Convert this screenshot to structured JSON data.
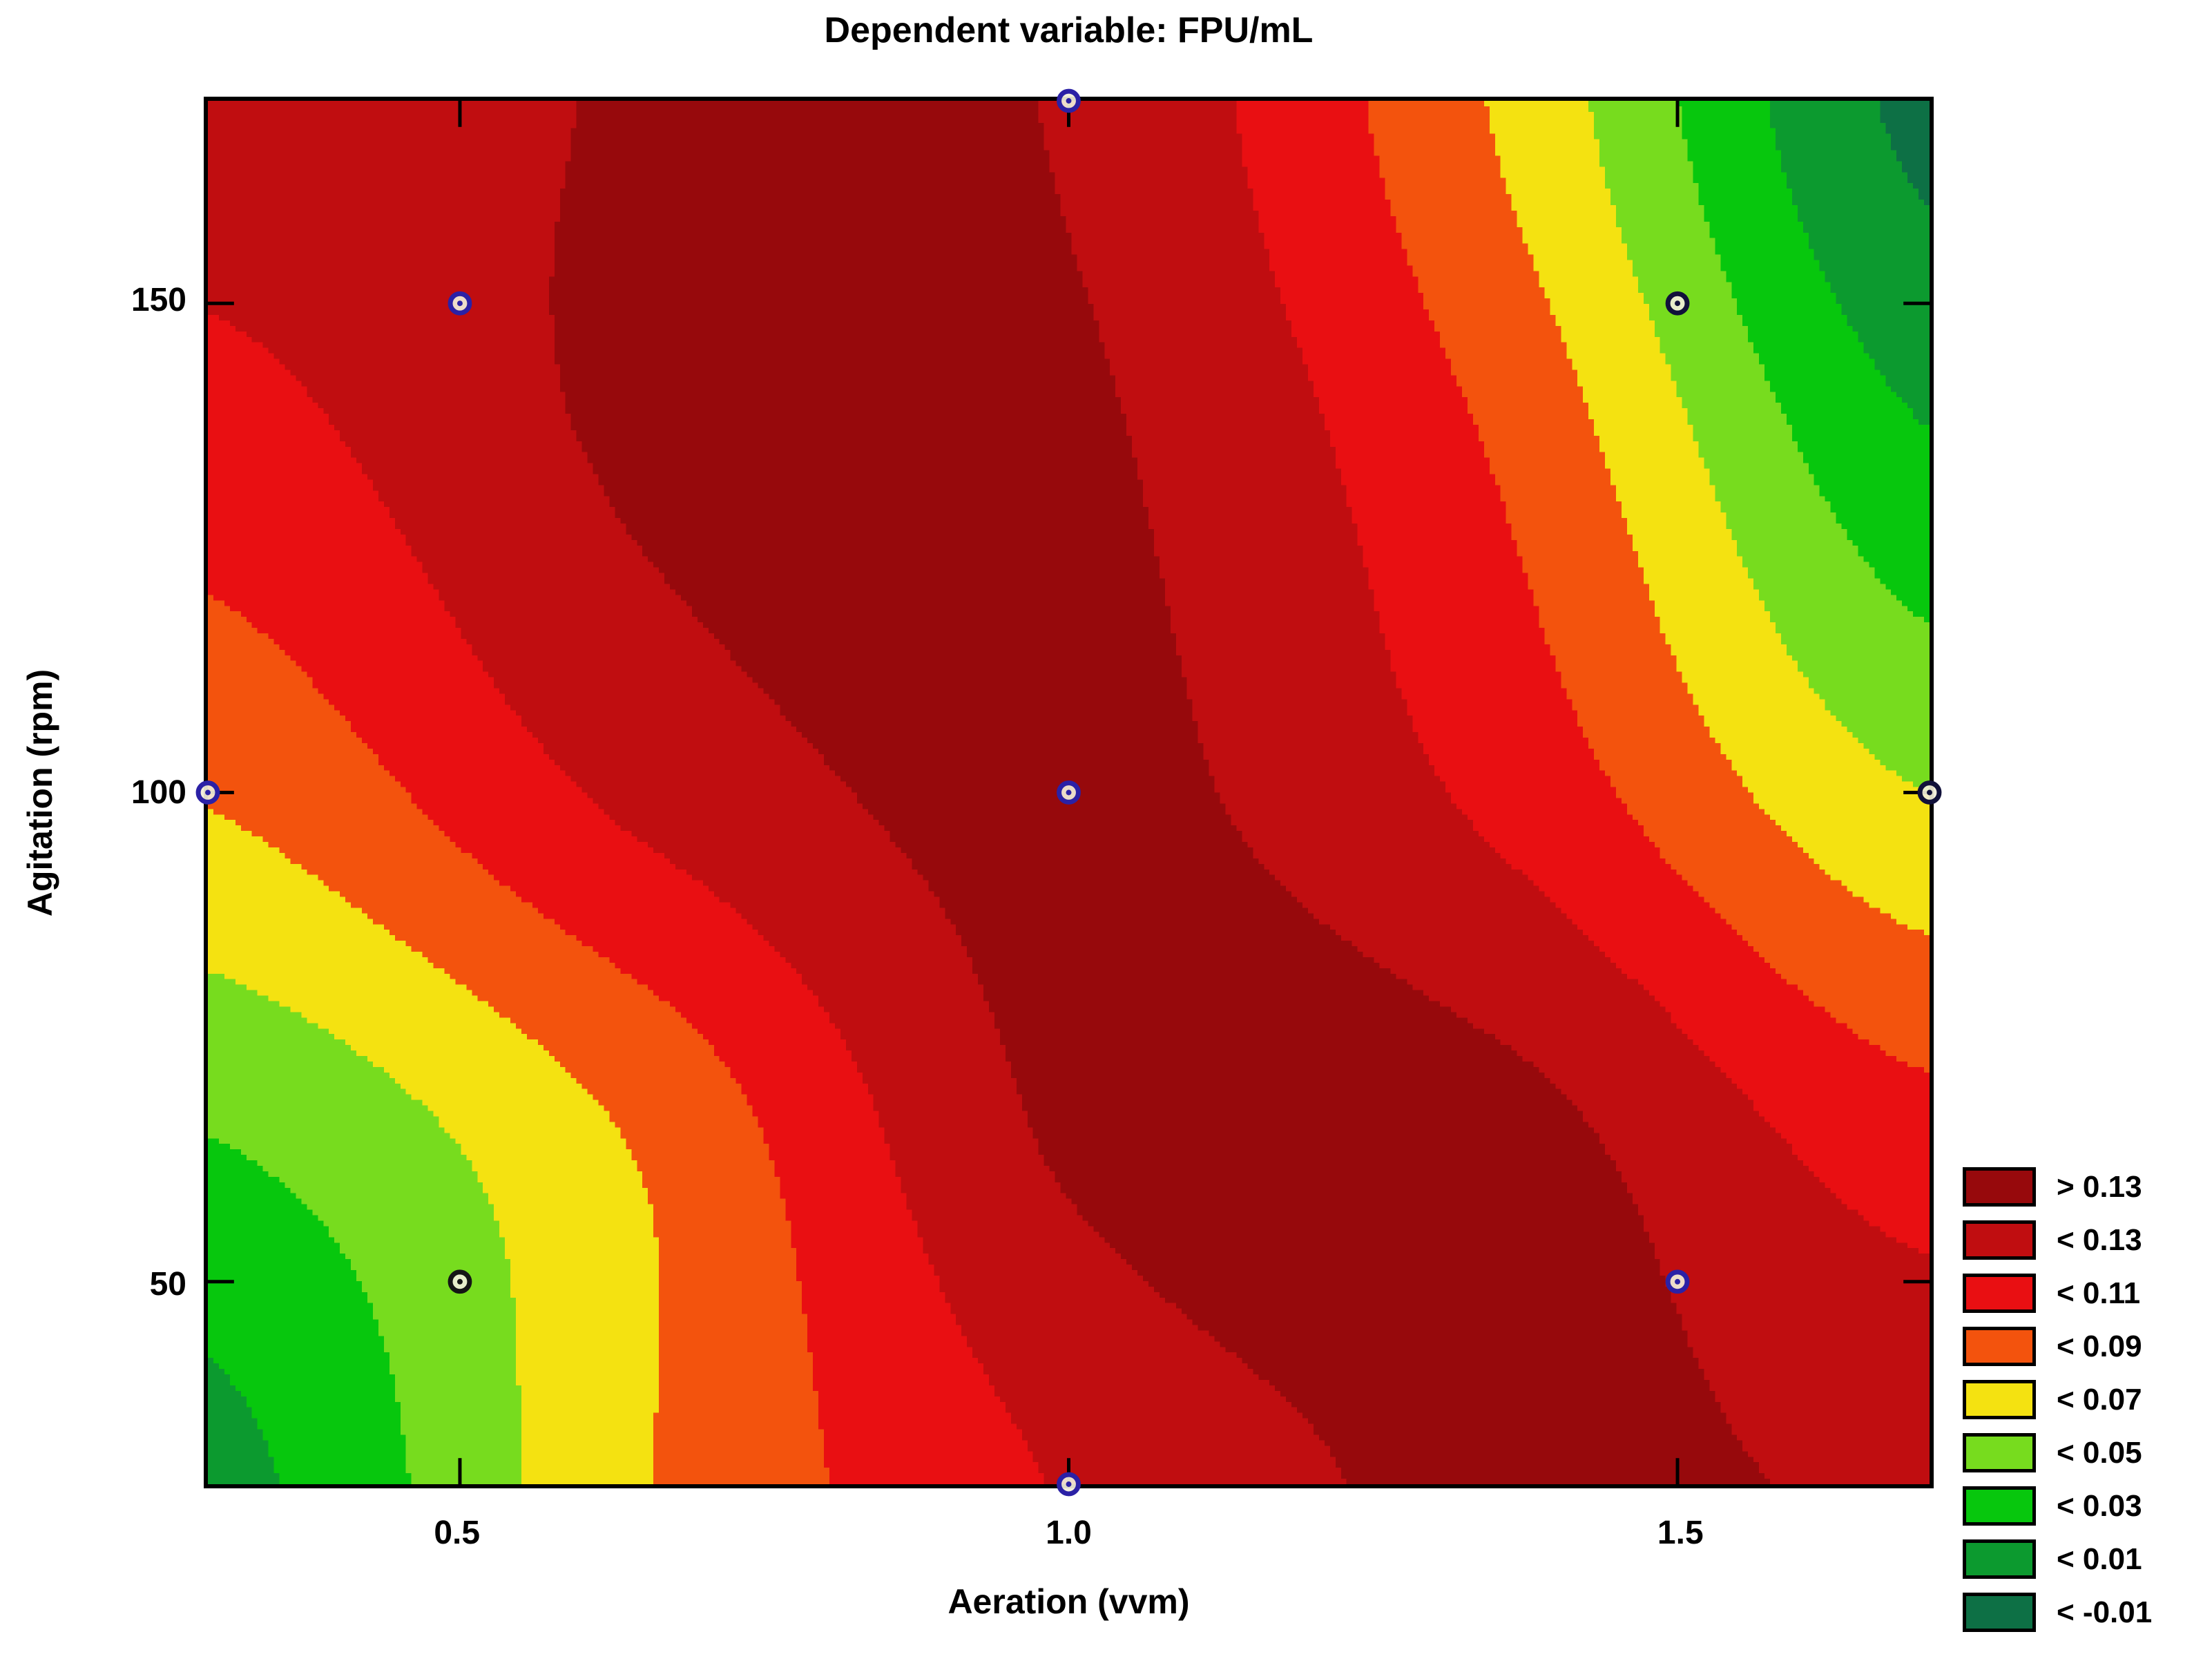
{
  "chart_data": {
    "type": "contour",
    "title": "Dependent variable: FPU/mL",
    "xlabel": "Aeration (vvm)",
    "ylabel": "Agitation (rpm)",
    "x_range": [
      0.293,
      1.707
    ],
    "y_range": [
      29.3,
      170.7
    ],
    "x_ticks": [
      {
        "value": 0.5,
        "label": "0.5"
      },
      {
        "value": 1.0,
        "label": "1.0"
      },
      {
        "value": 1.5,
        "label": "1.5"
      }
    ],
    "y_ticks": [
      {
        "value": 50,
        "label": "50"
      },
      {
        "value": 100,
        "label": "100"
      },
      {
        "value": 150,
        "label": "150"
      }
    ],
    "levels": {
      "thresholds": [
        0.13,
        0.11,
        0.09,
        0.07,
        0.05,
        0.03,
        0.01,
        -0.01
      ],
      "colors": [
        "#97090C",
        "#C00D10",
        "#E90F12",
        "#F3530D",
        "#F4E211",
        "#77DC1E",
        "#07C70D",
        "#0C9A2F",
        "#0D7045"
      ],
      "labels": [
        "> 0.13",
        "< 0.13",
        "< 0.11",
        "< 0.09",
        "< 0.07",
        "< 0.05",
        "< 0.03",
        "< 0.01",
        "< -0.01"
      ]
    },
    "legend_position": "right-bottom",
    "grid": {
      "x": [
        0.293,
        0.6465,
        1.0,
        1.3535,
        1.707
      ],
      "y": [
        170.7,
        135.35,
        100.0,
        64.65,
        29.3
      ],
      "values": [
        [
          0.12,
          0.131,
          0.128,
          0.068,
          -0.016
        ],
        [
          0.101,
          0.133,
          0.134,
          0.088,
          0.012
        ],
        [
          0.072,
          0.115,
          0.136,
          0.105,
          0.05
        ],
        [
          0.03,
          0.072,
          0.133,
          0.137,
          0.098
        ],
        [
          0.003,
          0.068,
          0.112,
          0.135,
          0.126
        ]
      ]
    },
    "design_points": [
      {
        "x": 1.0,
        "y": 170.7,
        "ring": "#2B21A6"
      },
      {
        "x": 0.5,
        "y": 150.0,
        "ring": "#2B21A6"
      },
      {
        "x": 1.5,
        "y": 150.0,
        "ring": "#11113A"
      },
      {
        "x": 0.293,
        "y": 100.0,
        "ring": "#2B21A6"
      },
      {
        "x": 1.0,
        "y": 100.0,
        "ring": "#2B21A6"
      },
      {
        "x": 1.707,
        "y": 100.0,
        "ring": "#11113A"
      },
      {
        "x": 0.5,
        "y": 50.0,
        "ring": "#151515"
      },
      {
        "x": 1.5,
        "y": 50.0,
        "ring": "#2B21A6"
      },
      {
        "x": 1.0,
        "y": 29.3,
        "ring": "#2B21A6"
      }
    ],
    "marker_fill": "#F2EFDA",
    "tick_length": 38,
    "frame_color": "#000000"
  }
}
